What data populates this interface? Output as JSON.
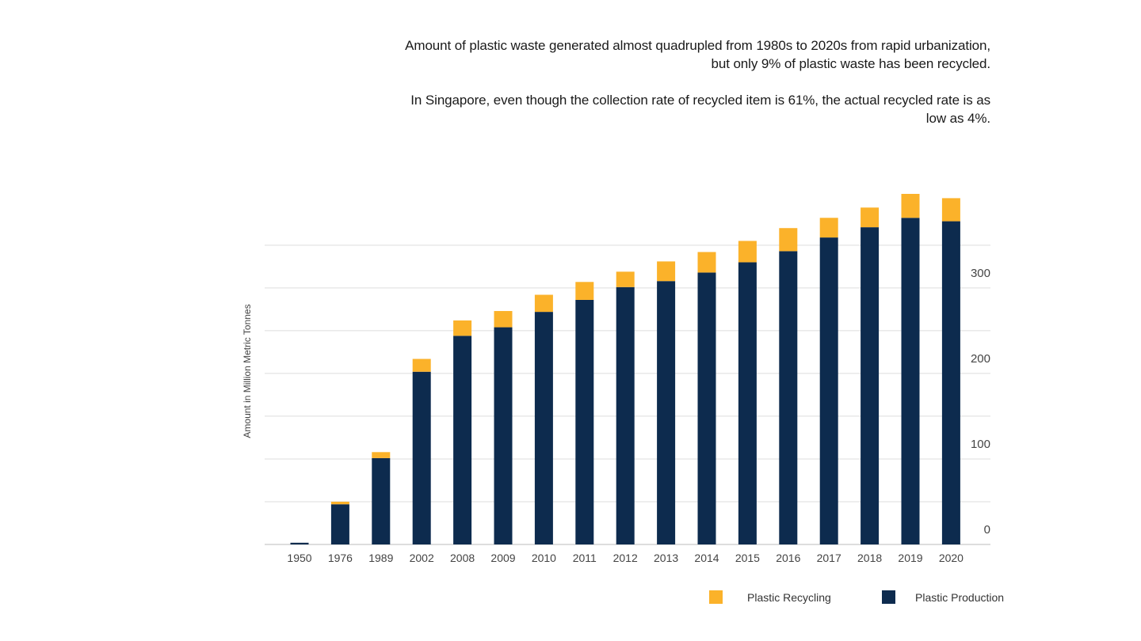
{
  "headline": {
    "paragraph1": "Amount of plastic waste generated almost quadrupled from 1980s to 2020s from rapid urbanization, but only 9% of plastic waste has been recycled.",
    "paragraph2": "In Singapore, even though the collection rate of recycled item is 61%, the actual recycled rate is as low as 4%."
  },
  "colors": {
    "production": "#0d2b4e",
    "recycling": "#fbb22a",
    "grid": "#dddddd",
    "axis": "#bbbbbb"
  },
  "chart_data": {
    "type": "bar",
    "stacked": true,
    "categories": [
      "1950",
      "1976",
      "1989",
      "2002",
      "2008",
      "2009",
      "2010",
      "2011",
      "2012",
      "2013",
      "2014",
      "2015",
      "2016",
      "2017",
      "2018",
      "2019",
      "2020"
    ],
    "series": [
      {
        "name": "Plastic Production",
        "values": [
          2,
          47,
          101,
          202,
          244,
          254,
          272,
          286,
          301,
          308,
          318,
          330,
          343,
          359,
          371,
          382,
          378
        ]
      },
      {
        "name": "Plastic Recycling",
        "values": [
          0,
          3,
          7,
          15,
          18,
          19,
          20,
          21,
          18,
          23,
          24,
          25,
          27,
          23,
          23,
          28,
          27
        ]
      }
    ],
    "ylabel": "Amount in Million Metric Tonnes",
    "yticks": [
      0,
      100,
      200,
      300
    ],
    "ylim": [
      0,
      410
    ],
    "y_axis_side": "right",
    "grid": true,
    "legend": {
      "position": "bottom-right",
      "entries": [
        {
          "label": "Plastic Recycling",
          "series": "Plastic Recycling"
        },
        {
          "label": "Plastic Production",
          "series": "Plastic Production"
        }
      ]
    }
  }
}
